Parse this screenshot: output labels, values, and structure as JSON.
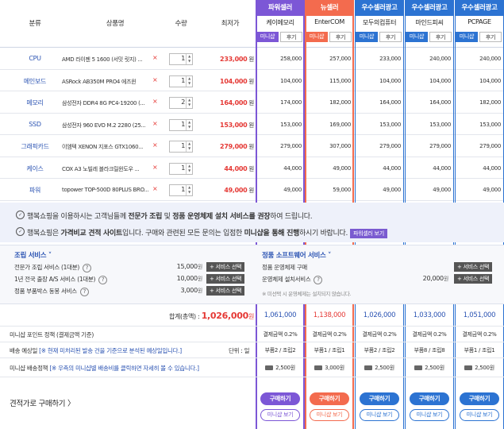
{
  "header": {
    "category": "분류",
    "product": "상품명",
    "qty": "수량",
    "min_price": "최저가"
  },
  "vendors": [
    {
      "tab": "파워셀러",
      "name": "케이메모리",
      "tab_color": "#7c57d6",
      "mini_label": "미니샵",
      "review_label": "후기",
      "total": "1,061,000",
      "point": "결제금액 0.2%",
      "delivery": "부품2 / 조립2",
      "shipping": "2,500원",
      "buy": "구매하기",
      "mini_view": "미니샵 보기"
    },
    {
      "tab": "뉴셀러",
      "name": "EnterCOM",
      "tab_color": "#f36b4e",
      "mini_label": "미니샵",
      "review_label": "후기",
      "total": "1,138,000",
      "point": "결제금액 0.2%",
      "delivery": "부품1 / 조립1",
      "shipping": "3,000원",
      "buy": "구매하기",
      "mini_view": "미니샵 보기"
    },
    {
      "tab": "우수셀러광고",
      "name": "모두의컴퓨터",
      "tab_color": "#2c73d2",
      "mini_label": "미니샵",
      "review_label": "후기",
      "total": "1,026,000",
      "point": "결제금액 0.2%",
      "delivery": "부품2 / 조립2",
      "shipping": "2,500원",
      "buy": "구매하기",
      "mini_view": "미니샵 보기"
    },
    {
      "tab": "우수셀러광고",
      "name": "마인드피씨",
      "tab_color": "#2c73d2",
      "mini_label": "미니샵",
      "review_label": "후기",
      "total": "1,033,000",
      "point": "결제금액 0.2%",
      "delivery": "부품8 / 조립8",
      "shipping": "2,500원",
      "buy": "구매하기",
      "mini_view": "미니샵 보기"
    },
    {
      "tab": "우수셀러광고",
      "name": "PCPAGE",
      "tab_color": "#2c73d2",
      "mini_label": "미니샵",
      "review_label": "후기",
      "total": "1,051,000",
      "point": "결제금액 0.2%",
      "delivery": "부품1 / 조립1",
      "shipping": "2,500원",
      "buy": "구매하기",
      "mini_view": "미니샵 보기"
    }
  ],
  "rows": [
    {
      "category": "CPU",
      "product": "AMD 라이젠 5 1600 (서밋 릿지) ...",
      "qty": "1",
      "min_price": "233,000",
      "prices": [
        "258,000",
        "257,000",
        "233,000",
        "240,000",
        "240,000"
      ]
    },
    {
      "category": "메인보드",
      "product": "ASRock AB350M PRO4 에즈윈",
      "qty": "1",
      "min_price": "104,000",
      "prices": [
        "104,000",
        "115,000",
        "104,000",
        "104,000",
        "104,000"
      ]
    },
    {
      "category": "메모리",
      "product": "삼성전자 DDR4 8G PC4-19200 (...",
      "qty": "2",
      "min_price": "164,000",
      "prices": [
        "174,000",
        "182,000",
        "164,000",
        "164,000",
        "182,000"
      ]
    },
    {
      "category": "SSD",
      "product": "삼성전자 960 EVO M.2 2280 (25...",
      "qty": "1",
      "min_price": "153,000",
      "prices": [
        "153,000",
        "169,000",
        "153,000",
        "153,000",
        "153,000"
      ]
    },
    {
      "category": "그래픽카드",
      "product": "이엠텍 XENON 지포스 GTX1060...",
      "qty": "1",
      "min_price": "279,000",
      "prices": [
        "279,000",
        "307,000",
        "279,000",
        "279,000",
        "279,000"
      ]
    },
    {
      "category": "케이스",
      "product": "COX A3 노빌레 블라크릴윈도우 ...",
      "qty": "1",
      "min_price": "44,000",
      "prices": [
        "44,000",
        "49,000",
        "44,000",
        "44,000",
        "44,000"
      ]
    },
    {
      "category": "파워",
      "product": "topower TOP-500D 80PLUS BRO...",
      "qty": "1",
      "min_price": "49,000",
      "prices": [
        "49,000",
        "59,000",
        "49,000",
        "49,000",
        "49,000"
      ]
    }
  ],
  "won": "원",
  "notice": {
    "line1_a": "행복쇼핑을 이용하시는 고객님들께 ",
    "line1_b": "전문가 조립",
    "line1_c": " 및 ",
    "line1_d": "정품 운영체제 설치 서비스를 권장",
    "line1_e": "하여 드립니다.",
    "line2_a": "행복쇼핑은 ",
    "line2_b": "가격비교 견적 사이트",
    "line2_c": "입니다. 구매와 관련된 모든 문의는 입점한 ",
    "line2_d": "미니샵을 통해 진행",
    "line2_e": "하시기 바랍니다.",
    "badge": "파워셀러 보기"
  },
  "assembly": {
    "title": "조립 서비스 ˅",
    "items": [
      {
        "label": "전문가 조립 서비스 (1대분)",
        "price": "15,000",
        "btn": "+ 서비스 선택"
      },
      {
        "label": "1년 전국 출장 A/S 서비스 (1대분)",
        "price": "10,000",
        "btn": "+ 서비스 선택"
      },
      {
        "label": "정품 부품박스 동봉 서비스",
        "price": "3,000",
        "btn": "+ 서비스 선택"
      }
    ]
  },
  "software": {
    "title": "정품 소프트웨어 서비스 ˅",
    "items": [
      {
        "label": "정품 운영체제 구매",
        "price": "",
        "btn": "+ 서비스 선택"
      },
      {
        "label": "운영체제 설치서비스",
        "price": "20,000",
        "btn": "+ 서비스 선택"
      }
    ],
    "note": "※ 미선택 시 운영체제는 설치되지 않습니다."
  },
  "summary": {
    "total_label": "합계(총액) : ",
    "total_value": "1,026,000",
    "total_unit": "원",
    "point_label": "미니샵 포인트 정책 (결제금액 기준)",
    "delivery_label": "배송 예상일 ",
    "delivery_note": "[※ 현재 미처리된 발송 건을 기준으로 분석된 예상일입니다.]",
    "delivery_unit": "단위 : 일",
    "shipping_label": "미니샵 배송정책 ",
    "shipping_note": "[※ 우측의 미니샵별 배송비를 클릭하면 자세히 볼 수 있습니다.]"
  },
  "footer": {
    "estimate": "견적가로 구매하기 〉"
  },
  "icons": {
    "question": "question-icon",
    "check": "check-circle-icon",
    "truck": "truck-icon",
    "remove": "remove-x-icon"
  }
}
